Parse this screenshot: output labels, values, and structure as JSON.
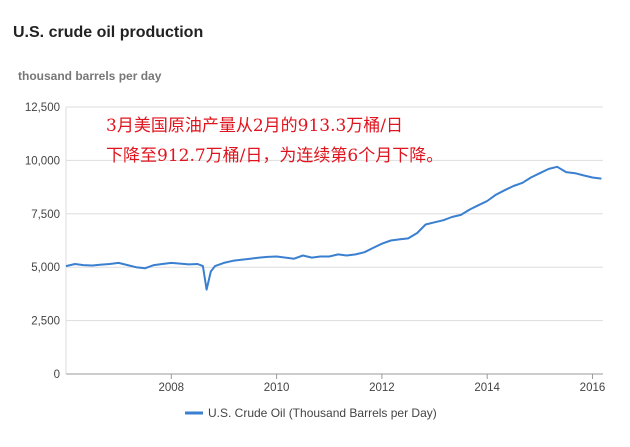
{
  "title": "U.S. crude oil production",
  "subtitle": "thousand barrels per day",
  "annotation": {
    "line1": "3月美国原油产量从2月的913.3万桶/日",
    "line2": "下降至912.7万桶/日，为连续第6个月下降。"
  },
  "colors": {
    "line": "#3a7fd0",
    "grid": "#dddddd",
    "annotation": "#e0141e"
  },
  "chart_data": {
    "type": "line",
    "title": "U.S. crude oil production",
    "ylabel": "thousand barrels per day",
    "xlim": [
      2006.0,
      2016.2
    ],
    "ylim": [
      0,
      12500
    ],
    "grid": true,
    "legend_position": "bottom",
    "y_ticks": [
      {
        "value": 0,
        "label": "0"
      },
      {
        "value": 2500,
        "label": "2,500"
      },
      {
        "value": 5000,
        "label": "5,000"
      },
      {
        "value": 7500,
        "label": "7,500"
      },
      {
        "value": 10000,
        "label": "10,000"
      },
      {
        "value": 12500,
        "label": "12,500"
      }
    ],
    "x_ticks": [
      {
        "value": 2008,
        "label": "2008"
      },
      {
        "value": 2010,
        "label": "2010"
      },
      {
        "value": 2012,
        "label": "2012"
      },
      {
        "value": 2014,
        "label": "2014"
      },
      {
        "value": 2016,
        "label": "2016"
      }
    ],
    "series": [
      {
        "name": "U.S. Crude Oil (Thousand Barrels per Day)",
        "x": [
          2006.0,
          2006.17,
          2006.33,
          2006.5,
          2006.67,
          2006.83,
          2007.0,
          2007.17,
          2007.33,
          2007.5,
          2007.67,
          2007.83,
          2008.0,
          2008.17,
          2008.33,
          2008.5,
          2008.6,
          2008.67,
          2008.75,
          2008.83,
          2009.0,
          2009.17,
          2009.33,
          2009.5,
          2009.67,
          2009.83,
          2010.0,
          2010.17,
          2010.33,
          2010.5,
          2010.67,
          2010.83,
          2011.0,
          2011.17,
          2011.33,
          2011.5,
          2011.67,
          2011.83,
          2012.0,
          2012.17,
          2012.33,
          2012.5,
          2012.67,
          2012.83,
          2013.0,
          2013.17,
          2013.33,
          2013.5,
          2013.67,
          2013.83,
          2014.0,
          2014.17,
          2014.33,
          2014.5,
          2014.67,
          2014.83,
          2015.0,
          2015.17,
          2015.33,
          2015.5,
          2015.67,
          2015.83,
          2016.0,
          2016.17
        ],
        "values": [
          5050,
          5150,
          5100,
          5080,
          5120,
          5150,
          5200,
          5100,
          5000,
          4950,
          5100,
          5150,
          5200,
          5170,
          5130,
          5150,
          5050,
          3950,
          4800,
          5050,
          5200,
          5300,
          5350,
          5400,
          5450,
          5480,
          5500,
          5450,
          5400,
          5550,
          5450,
          5500,
          5500,
          5600,
          5550,
          5600,
          5700,
          5900,
          6100,
          6250,
          6300,
          6350,
          6600,
          7000,
          7100,
          7200,
          7350,
          7450,
          7700,
          7900,
          8100,
          8400,
          8600,
          8800,
          8950,
          9200,
          9400,
          9600,
          9700,
          9450,
          9400,
          9300,
          9200,
          9150
        ]
      }
    ]
  }
}
